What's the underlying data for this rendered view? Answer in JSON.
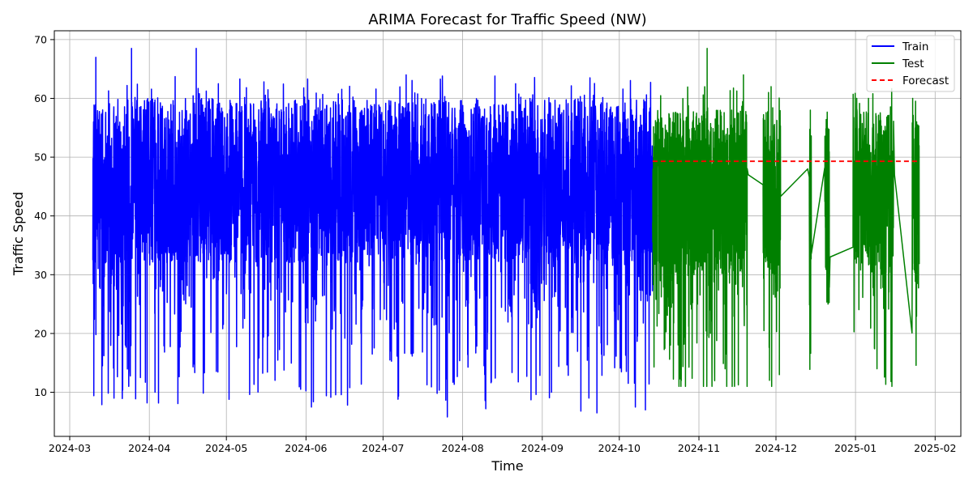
{
  "chart_data": {
    "type": "line",
    "title": "ARIMA Forecast for Traffic Speed (NW)",
    "xlabel": "Time",
    "ylabel": "Traffic Speed",
    "x_type": "date",
    "xlim": [
      "2024-02-24",
      "2025-02-11"
    ],
    "ylim": [
      2.5,
      71.5
    ],
    "x_ticks": [
      "2024-03-01",
      "2024-04-01",
      "2024-05-01",
      "2024-06-01",
      "2024-07-01",
      "2024-08-01",
      "2024-09-01",
      "2024-10-01",
      "2024-11-01",
      "2024-12-01",
      "2025-01-01",
      "2025-02-01"
    ],
    "x_tick_labels": [
      "2024-03",
      "2024-04",
      "2024-05",
      "2024-06",
      "2024-07",
      "2024-08",
      "2024-09",
      "2024-10",
      "2024-11",
      "2024-12",
      "2025-01",
      "2025-02"
    ],
    "y_ticks": [
      10,
      20,
      30,
      40,
      50,
      60,
      70
    ],
    "y_tick_labels": [
      "10",
      "20",
      "30",
      "40",
      "50",
      "60",
      "70"
    ],
    "grid": true,
    "legend_position": "top-right",
    "series": [
      {
        "name": "Train",
        "color": "#0000ff",
        "style": "solid",
        "range": [
          "2024-03-10",
          "2024-10-14"
        ],
        "value_range": [
          5.8,
          68.5
        ],
        "typical_range": [
          32,
          60
        ],
        "sample_points": [
          [
            "2024-03-10",
            56
          ],
          [
            "2024-03-11",
            67
          ],
          [
            "2024-03-18",
            9
          ],
          [
            "2024-03-25",
            68.5
          ],
          [
            "2024-03-31",
            8.2
          ],
          [
            "2024-04-03",
            10
          ],
          [
            "2024-04-19",
            68.5
          ],
          [
            "2024-05-02",
            8.8
          ],
          [
            "2024-06-03",
            7.5
          ],
          [
            "2024-07-26",
            5.8
          ],
          [
            "2024-08-10",
            7.2
          ],
          [
            "2024-09-16",
            6.8
          ],
          [
            "2024-09-22",
            6.5
          ],
          [
            "2024-10-07",
            7.5
          ],
          [
            "2024-10-11",
            7
          ]
        ]
      },
      {
        "name": "Test",
        "color": "#008000",
        "style": "solid",
        "range": [
          "2024-10-14",
          "2025-01-26"
        ],
        "value_range": [
          11,
          68.5
        ],
        "sample_points": [
          [
            "2024-10-14",
            45
          ],
          [
            "2024-10-25",
            12
          ],
          [
            "2024-11-04",
            68.5
          ],
          [
            "2024-11-11",
            14
          ],
          [
            "2024-11-18",
            64
          ],
          [
            "2024-11-20",
            47
          ],
          [
            "2024-11-28",
            47
          ],
          [
            "2024-11-29",
            62
          ],
          [
            "2024-12-02",
            13
          ],
          [
            "2024-12-02",
            49
          ],
          [
            "2024-12-13",
            48
          ],
          [
            "2024-12-14",
            58
          ],
          [
            "2024-12-20",
            38
          ],
          [
            "2024-12-21",
            25
          ],
          [
            "2024-12-22",
            33
          ],
          [
            "2024-12-31",
            46
          ],
          [
            "2025-01-01",
            60
          ],
          [
            "2025-01-03",
            32
          ],
          [
            "2025-01-06",
            60
          ],
          [
            "2025-01-09",
            14
          ],
          [
            "2025-01-12",
            44
          ],
          [
            "2025-01-15",
            11
          ],
          [
            "2025-01-16",
            47
          ],
          [
            "2025-01-23",
            50
          ],
          [
            "2025-01-23",
            60
          ],
          [
            "2025-01-25",
            28.5
          ],
          [
            "2025-01-25",
            49.5
          ]
        ]
      },
      {
        "name": "Forecast",
        "color": "#ff0000",
        "style": "dashed",
        "x": [
          "2024-10-14",
          "2025-01-26"
        ],
        "values": [
          49.3,
          49.3
        ]
      }
    ]
  }
}
